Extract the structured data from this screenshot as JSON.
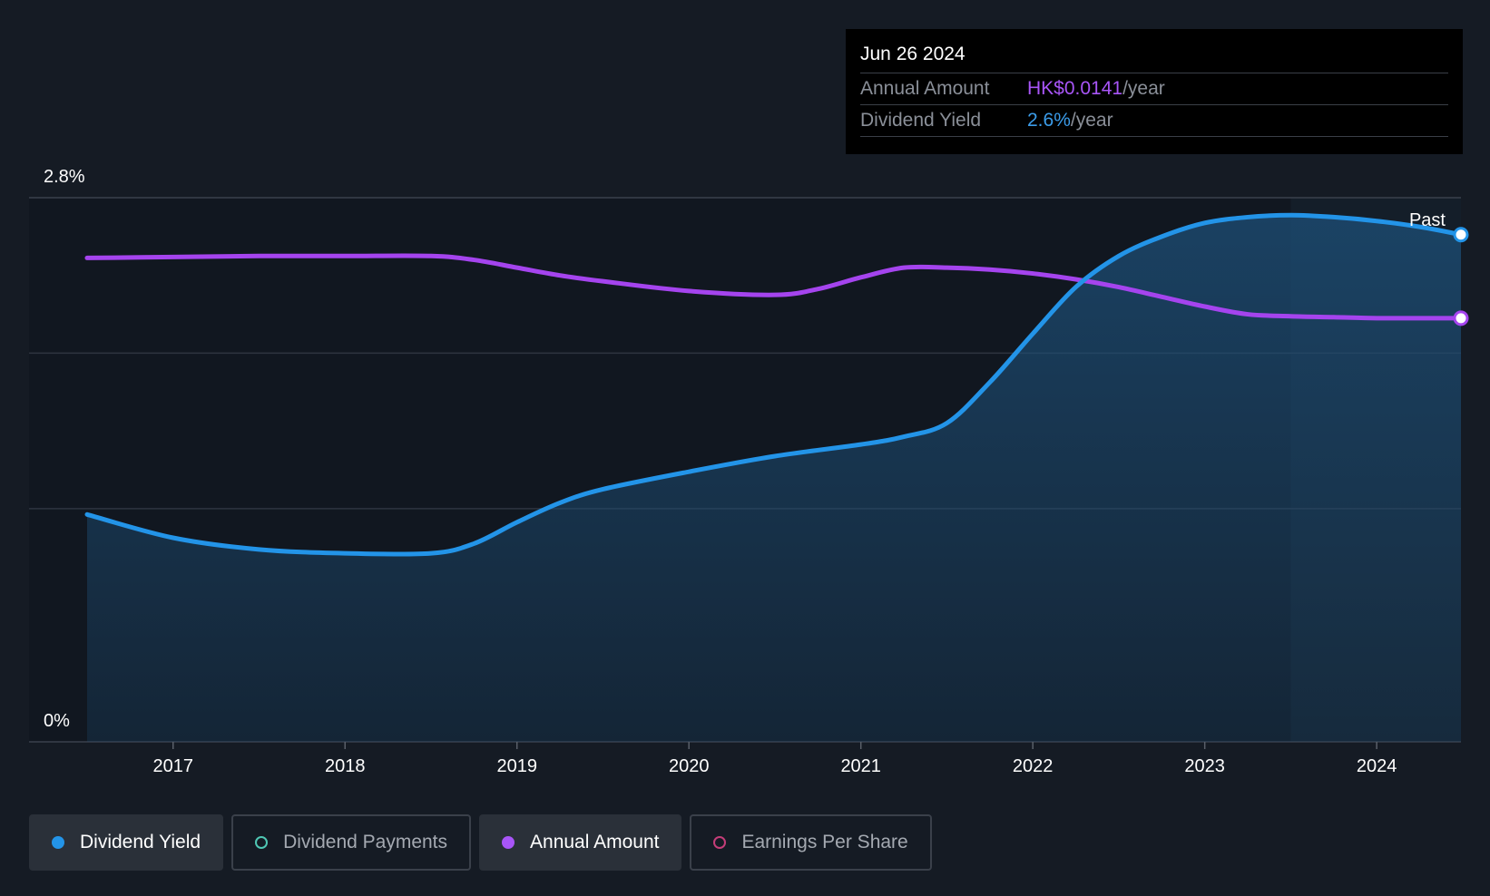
{
  "tooltip": {
    "date": "Jun 26 2024",
    "rows": [
      {
        "label": "Annual Amount",
        "value": "HK$0.0141",
        "unit": "/year",
        "color": "#a855f7"
      },
      {
        "label": "Dividend Yield",
        "value": "2.6%",
        "unit": "/year",
        "color": "#3b9be8"
      }
    ]
  },
  "legend": [
    {
      "label": "Dividend Yield",
      "color": "#2394e8",
      "active": true
    },
    {
      "label": "Dividend Payments",
      "color": "#4fc7b4",
      "active": false
    },
    {
      "label": "Annual Amount",
      "color": "#a855f7",
      "active": true
    },
    {
      "label": "Earnings Per Share",
      "color": "#c43d78",
      "active": false
    }
  ],
  "colors": {
    "background": "#151b24",
    "yield_line": "#2394e8",
    "amount_line": "#a544ee",
    "grid": "#2e3540"
  },
  "chart_data": {
    "type": "line",
    "x_ticks": [
      "2017",
      "2018",
      "2019",
      "2020",
      "2021",
      "2022",
      "2023",
      "2024"
    ],
    "y_tick_labels": [
      "0%",
      "2.8%"
    ],
    "ylim": [
      0,
      2.8
    ],
    "x_range": [
      2016.5,
      2024.49
    ],
    "past_region_start": 2023.5,
    "past_label": "Past",
    "grid": true,
    "series": [
      {
        "name": "Dividend Yield",
        "unit": "%",
        "x": [
          2016.5,
          2017.0,
          2017.5,
          2018.0,
          2018.5,
          2018.75,
          2019.0,
          2019.25,
          2019.5,
          2020.0,
          2020.5,
          2021.0,
          2021.25,
          2021.5,
          2021.75,
          2022.0,
          2022.25,
          2022.5,
          2022.75,
          2023.0,
          2023.25,
          2023.5,
          2023.75,
          2024.0,
          2024.25,
          2024.49
        ],
        "values": [
          1.17,
          1.05,
          0.99,
          0.97,
          0.97,
          1.02,
          1.13,
          1.23,
          1.3,
          1.39,
          1.47,
          1.53,
          1.57,
          1.64,
          1.85,
          2.1,
          2.34,
          2.5,
          2.6,
          2.67,
          2.7,
          2.71,
          2.7,
          2.68,
          2.65,
          2.61
        ]
      },
      {
        "name": "Annual Amount",
        "x": [
          2016.5,
          2017.0,
          2017.5,
          2018.0,
          2018.5,
          2018.75,
          2019.0,
          2019.25,
          2019.5,
          2020.0,
          2020.5,
          2020.75,
          2021.0,
          2021.25,
          2021.5,
          2021.75,
          2022.0,
          2022.25,
          2022.5,
          2022.75,
          2023.0,
          2023.25,
          2023.5,
          2023.75,
          2024.0,
          2024.25,
          2024.49
        ],
        "values": [
          2.49,
          2.495,
          2.5,
          2.5,
          2.5,
          2.48,
          2.44,
          2.4,
          2.37,
          2.32,
          2.3,
          2.33,
          2.39,
          2.44,
          2.44,
          2.43,
          2.41,
          2.38,
          2.34,
          2.29,
          2.24,
          2.2,
          2.19,
          2.185,
          2.18,
          2.18,
          2.18
        ]
      }
    ]
  }
}
